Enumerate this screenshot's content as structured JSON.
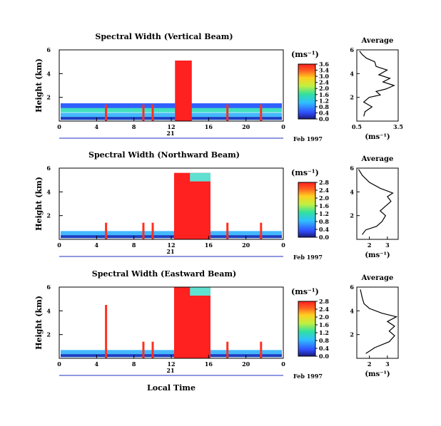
{
  "figure": {
    "x_axis_title": "Local Time",
    "date_label": "Feb 1997",
    "day_label": "21"
  },
  "chart_data": [
    {
      "type": "heatmap",
      "title": "Spectral Width (Vertical Beam)",
      "ylabel": "Height (km)",
      "y_ticks": [
        "6",
        "4",
        "2"
      ],
      "y_range": [
        0,
        6
      ],
      "x_ticks": [
        "0",
        "4",
        "8",
        "12",
        "16",
        "20",
        "0"
      ],
      "x_range": [
        0,
        24
      ],
      "colorbar": {
        "unit_label": "(ms⁻¹)",
        "ticks": [
          "3.6",
          "3.4",
          "3.0",
          "2.4",
          "2.0",
          "1.6",
          "1.2",
          "0.8",
          "0.4",
          "0.0"
        ],
        "range": [
          0,
          3.6
        ]
      },
      "average_profile": {
        "title": "Average",
        "xlabel": "(ms⁻¹)",
        "x_ticks": [
          "0.5",
          "3.5"
        ],
        "x_range": [
          0.5,
          3.5
        ],
        "y_ticks": [
          "6",
          "4",
          "2"
        ],
        "points": [
          [
            1.0,
            0.4
          ],
          [
            1.1,
            0.8
          ],
          [
            1.6,
            1.2
          ],
          [
            1.0,
            1.6
          ],
          [
            1.4,
            2.0
          ],
          [
            2.2,
            2.2
          ],
          [
            1.9,
            2.5
          ],
          [
            2.6,
            2.7
          ],
          [
            3.2,
            3.0
          ],
          [
            2.4,
            3.3
          ],
          [
            2.9,
            3.6
          ],
          [
            2.1,
            3.9
          ],
          [
            2.7,
            4.3
          ],
          [
            1.9,
            4.6
          ],
          [
            1.8,
            5.0
          ],
          [
            1.2,
            5.3
          ],
          [
            0.9,
            5.6
          ],
          [
            0.7,
            5.9
          ]
        ]
      }
    },
    {
      "type": "heatmap",
      "title": "Spectral Width (Northward Beam)",
      "ylabel": "Height (km)",
      "y_ticks": [
        "6",
        "4",
        "2"
      ],
      "y_range": [
        0,
        6
      ],
      "x_ticks": [
        "0",
        "4",
        "8",
        "12",
        "16",
        "20",
        "0"
      ],
      "x_range": [
        0,
        24
      ],
      "colorbar": {
        "unit_label": "(ms⁻¹)",
        "ticks": [
          "2.8",
          "2.4",
          "2.0",
          "1.6",
          "1.2",
          "0.8",
          "0.4",
          "0.0"
        ],
        "range": [
          0,
          2.8
        ]
      },
      "average_profile": {
        "title": "Average",
        "xlabel": "(ms⁻¹)",
        "x_ticks": [
          "2",
          "3"
        ],
        "x_range": [
          1.3,
          3.6
        ],
        "y_ticks": [
          "6",
          "4",
          "2"
        ],
        "points": [
          [
            1.6,
            0.4
          ],
          [
            1.8,
            0.8
          ],
          [
            2.4,
            1.1
          ],
          [
            2.7,
            1.5
          ],
          [
            2.9,
            2.0
          ],
          [
            2.6,
            2.4
          ],
          [
            2.9,
            2.8
          ],
          [
            3.2,
            3.2
          ],
          [
            3.0,
            3.6
          ],
          [
            3.3,
            3.9
          ],
          [
            2.6,
            4.3
          ],
          [
            2.0,
            4.8
          ],
          [
            1.6,
            5.4
          ],
          [
            1.4,
            5.9
          ]
        ]
      }
    },
    {
      "type": "heatmap",
      "title": "Spectral Width (Eastward Beam)",
      "ylabel": "Height (km)",
      "y_ticks": [
        "6",
        "4",
        "2"
      ],
      "y_range": [
        0,
        6
      ],
      "x_ticks": [
        "0",
        "4",
        "8",
        "12",
        "16",
        "20",
        "0"
      ],
      "x_range": [
        0,
        24
      ],
      "colorbar": {
        "unit_label": "(ms⁻¹)",
        "ticks": [
          "2.8",
          "2.4",
          "2.0",
          "1.6",
          "1.2",
          "0.8",
          "0.4",
          "0.0"
        ],
        "range": [
          0,
          2.8
        ]
      },
      "average_profile": {
        "title": "Average",
        "xlabel": "(ms⁻¹)",
        "x_ticks": [
          "2",
          "3"
        ],
        "x_range": [
          1.3,
          3.6
        ],
        "y_ticks": [
          "6",
          "4",
          "2"
        ],
        "points": [
          [
            1.8,
            0.4
          ],
          [
            2.3,
            0.9
          ],
          [
            3.1,
            1.4
          ],
          [
            3.4,
            1.9
          ],
          [
            3.1,
            2.3
          ],
          [
            3.4,
            2.7
          ],
          [
            3.0,
            3.1
          ],
          [
            3.5,
            3.5
          ],
          [
            2.7,
            3.8
          ],
          [
            2.0,
            4.2
          ],
          [
            1.7,
            4.6
          ],
          [
            1.6,
            5.1
          ],
          [
            1.5,
            5.8
          ]
        ]
      }
    }
  ]
}
